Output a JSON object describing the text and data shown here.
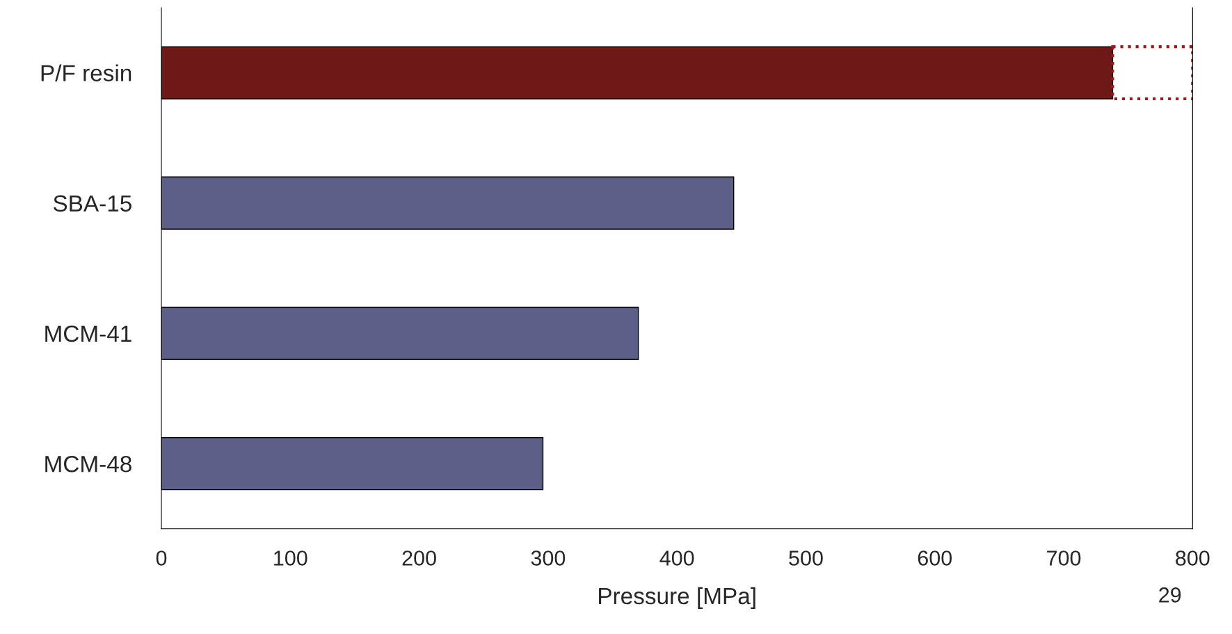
{
  "chart_data": {
    "type": "bar",
    "orientation": "horizontal",
    "stacked": true,
    "categories": [
      "P/F resin",
      "SBA-15",
      "MCM-41",
      "MCM-48"
    ],
    "series": [
      {
        "colors": [
          "#6e1818",
          "#5c5f88",
          "#5c5f88",
          "#5c5f88"
        ],
        "values": [
          738,
          444,
          370,
          296
        ]
      },
      {
        "color": "#a01818",
        "line_style": "dotted",
        "values": [
          62,
          null,
          null,
          null
        ]
      }
    ],
    "xlabel": "Pressure [MPa]",
    "xlim": [
      0,
      800
    ],
    "xticks": [
      0,
      100,
      200,
      300,
      400,
      500,
      600,
      700,
      800
    ],
    "grid": false,
    "legend": false,
    "annotations": [
      "29"
    ]
  }
}
